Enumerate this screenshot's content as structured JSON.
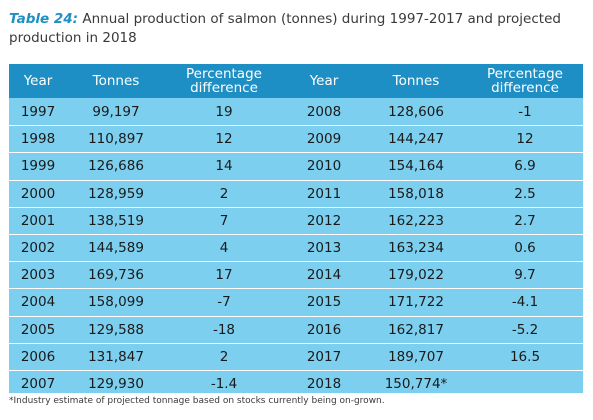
{
  "caption": {
    "label": "Table 24:",
    "text": " Annual production of salmon (tonnes) during 1997-2017 and projected production in 2018"
  },
  "headers": [
    "Year",
    "Tonnes",
    "Percentage difference",
    "Year",
    "Tonnes",
    "Percentage difference"
  ],
  "rows": [
    [
      "1997",
      "99,197",
      "19",
      "2008",
      "128,606",
      "-1"
    ],
    [
      "1998",
      "110,897",
      "12",
      "2009",
      "144,247",
      "12"
    ],
    [
      "1999",
      "126,686",
      "14",
      "2010",
      "154,164",
      "6.9"
    ],
    [
      "2000",
      "128,959",
      "2",
      "2011",
      "158,018",
      "2.5"
    ],
    [
      "2001",
      "138,519",
      "7",
      "2012",
      "162,223",
      "2.7"
    ],
    [
      "2002",
      "144,589",
      "4",
      "2013",
      "163,234",
      "0.6"
    ],
    [
      "2003",
      "169,736",
      "17",
      "2014",
      "179,022",
      "9.7"
    ],
    [
      "2004",
      "158,099",
      "-7",
      "2015",
      "171,722",
      "-4.1"
    ],
    [
      "2005",
      "129,588",
      "-18",
      "2016",
      "162,817",
      "-5.2"
    ],
    [
      "2006",
      "131,847",
      "2",
      "2017",
      "189,707",
      "16.5"
    ],
    [
      "2007",
      "129,930",
      "-1.4",
      "2018",
      "150,774*",
      ""
    ]
  ],
  "footnote": "*Industry estimate of projected tonnage based on stocks currently being on-grown.",
  "colors": {
    "header_bg": "#1e8fc4",
    "body_bg": "#7ccfee",
    "accent": "#1e8fc4"
  }
}
